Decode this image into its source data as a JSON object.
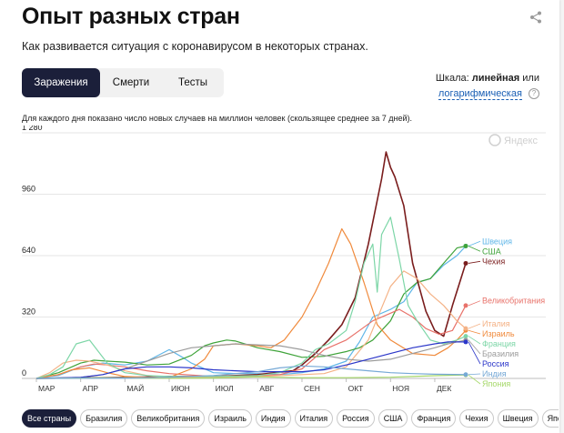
{
  "title": "Опыт разных стран",
  "subtitle": "Как развивается ситуация с коронавирусом в некоторых странах.",
  "icons": {
    "share": "share-icon",
    "help": "help-icon",
    "watermark": "yandex-logo-icon"
  },
  "tabs": [
    {
      "label": "Заражения",
      "active": true
    },
    {
      "label": "Смерти",
      "active": false
    },
    {
      "label": "Тесты",
      "active": false
    }
  ],
  "scale": {
    "prefix": "Шкала:",
    "current": "линейная",
    "or": "или",
    "alternative": "логарифмическая"
  },
  "note": "Для каждого дня показано число новых случаев на миллион человек (скользящее среднее за 7 дней).",
  "watermark": "Яндекс",
  "filters": [
    {
      "label": "Все страны",
      "active": true
    },
    {
      "label": "Бразилия",
      "active": false
    },
    {
      "label": "Великобритания",
      "active": false
    },
    {
      "label": "Израиль",
      "active": false
    },
    {
      "label": "Индия",
      "active": false
    },
    {
      "label": "Италия",
      "active": false
    },
    {
      "label": "Россия",
      "active": false
    },
    {
      "label": "США",
      "active": false
    },
    {
      "label": "Франция",
      "active": false
    },
    {
      "label": "Чехия",
      "active": false
    },
    {
      "label": "Швеция",
      "active": false
    },
    {
      "label": "Япония",
      "active": false
    }
  ],
  "chart_data": {
    "type": "line",
    "title": "",
    "xlabel": "",
    "ylabel": "",
    "ylim": [
      0,
      1280
    ],
    "yticks": [
      0,
      320,
      640,
      960,
      1280
    ],
    "ytick_labels": [
      "0",
      "320",
      "640",
      "960",
      "1 280"
    ],
    "xlim": [
      0,
      9.7
    ],
    "xticks": [
      0,
      1,
      2,
      3,
      4,
      5,
      6,
      7,
      8,
      9
    ],
    "xtick_labels": [
      "МАР",
      "АПР",
      "МАЙ",
      "ИЮН",
      "ИЮЛ",
      "АВГ",
      "СЕН",
      "ОКТ",
      "НОЯ",
      "ДЕК"
    ],
    "x_unit": "month (0 = start of March)",
    "grid": "horizontal",
    "legend": "right end labels",
    "series": [
      {
        "name": "Швеция",
        "color": "#5fb6e8",
        "x": [
          0,
          0.5,
          1,
          1.5,
          2,
          2.5,
          3,
          3.3,
          3.5,
          4,
          4.5,
          5,
          5.5,
          6,
          6.5,
          7,
          7.3,
          7.6,
          8,
          8.3,
          8.6,
          8.9,
          9.2,
          9.5,
          9.7
        ],
        "y": [
          0,
          15,
          60,
          80,
          70,
          90,
          150,
          110,
          80,
          30,
          25,
          25,
          20,
          30,
          50,
          90,
          190,
          320,
          360,
          400,
          500,
          520,
          590,
          640,
          690
        ]
      },
      {
        "name": "США",
        "color": "#3fa33a",
        "x": [
          0,
          0.5,
          1,
          1.3,
          1.6,
          2,
          2.5,
          3,
          3.5,
          3.8,
          4,
          4.3,
          4.5,
          5,
          5.5,
          6,
          6.5,
          7,
          7.3,
          7.6,
          8,
          8.3,
          8.6,
          8.9,
          9.2,
          9.5,
          9.7
        ],
        "y": [
          0,
          30,
          80,
          95,
          90,
          85,
          70,
          75,
          120,
          170,
          185,
          200,
          195,
          160,
          140,
          110,
          115,
          140,
          160,
          200,
          300,
          440,
          500,
          520,
          600,
          680,
          690
        ]
      },
      {
        "name": "Чехия",
        "color": "#7a1d1d",
        "x": [
          0,
          2,
          3,
          4,
          5,
          5.8,
          6,
          6.3,
          6.6,
          6.9,
          7.2,
          7.5,
          7.8,
          7.9,
          8,
          8.1,
          8.3,
          8.5,
          8.8,
          9,
          9.2,
          9.4,
          9.7
        ],
        "y": [
          0,
          5,
          10,
          10,
          20,
          40,
          70,
          130,
          200,
          280,
          420,
          700,
          1040,
          1180,
          1100,
          1050,
          900,
          600,
          350,
          250,
          220,
          380,
          600
        ]
      },
      {
        "name": "Великобритания",
        "color": "#e8726a",
        "x": [
          0,
          0.5,
          1,
          1.3,
          1.6,
          2,
          2.5,
          3,
          4,
          5,
          5.5,
          6,
          6.5,
          7,
          7.3,
          7.6,
          7.9,
          8.2,
          8.5,
          8.8,
          9.1,
          9.4,
          9.7
        ],
        "y": [
          0,
          20,
          60,
          75,
          70,
          60,
          40,
          25,
          10,
          15,
          20,
          50,
          150,
          200,
          250,
          300,
          330,
          360,
          320,
          260,
          230,
          250,
          380
        ]
      },
      {
        "name": "Израиль",
        "color": "#f08a3c",
        "x": [
          0,
          0.5,
          0.8,
          1.2,
          1.6,
          2,
          2.5,
          3,
          3.5,
          3.8,
          4,
          4.5,
          5,
          5.3,
          5.6,
          6,
          6.3,
          6.6,
          6.8,
          6.9,
          7.1,
          7.4,
          7.7,
          8,
          8.5,
          9,
          9.3,
          9.5,
          9.7
        ],
        "y": [
          0,
          20,
          45,
          55,
          30,
          10,
          5,
          5,
          50,
          100,
          170,
          180,
          170,
          160,
          200,
          320,
          450,
          600,
          720,
          780,
          700,
          500,
          280,
          200,
          130,
          120,
          160,
          200,
          250
        ]
      },
      {
        "name": "Италия",
        "color": "#f4b286",
        "x": [
          0,
          0.3,
          0.6,
          0.9,
          1.2,
          1.6,
          2,
          2.5,
          3,
          4,
          5,
          6,
          6.5,
          7,
          7.5,
          8,
          8.3,
          8.6,
          8.9,
          9.2,
          9.5,
          9.7
        ],
        "y": [
          0,
          30,
          80,
          95,
          90,
          70,
          40,
          15,
          5,
          5,
          10,
          20,
          25,
          60,
          200,
          480,
          560,
          520,
          440,
          380,
          300,
          260
        ]
      },
      {
        "name": "Франция",
        "color": "#7dd6a7",
        "x": [
          0,
          0.3,
          0.6,
          0.9,
          1.2,
          1.6,
          2,
          2.5,
          3,
          4,
          5,
          5.5,
          6,
          6.3,
          6.6,
          7,
          7.2,
          7.4,
          7.6,
          7.7,
          7.8,
          8,
          8.2,
          8.4,
          8.6,
          8.9,
          9.2,
          9.5,
          9.7
        ],
        "y": [
          0,
          20,
          60,
          180,
          200,
          80,
          30,
          15,
          10,
          10,
          15,
          30,
          80,
          150,
          180,
          250,
          400,
          600,
          700,
          450,
          750,
          840,
          620,
          380,
          300,
          200,
          180,
          200,
          220
        ]
      },
      {
        "name": "Бразилия",
        "color": "#9b9b9b",
        "x": [
          0,
          1,
          1.5,
          2,
          2.5,
          3,
          3.5,
          4,
          4.5,
          5,
          5.5,
          6,
          6.5,
          7,
          7.5,
          8,
          8.5,
          9,
          9.3,
          9.7
        ],
        "y": [
          0,
          5,
          20,
          50,
          90,
          130,
          160,
          170,
          180,
          175,
          170,
          150,
          120,
          100,
          90,
          100,
          130,
          160,
          180,
          200
        ]
      },
      {
        "name": "Россия",
        "color": "#2b36c9",
        "x": [
          0,
          1,
          1.5,
          2,
          2.5,
          3,
          3.5,
          4,
          4.5,
          5,
          5.5,
          6,
          6.5,
          7,
          7.5,
          8,
          8.5,
          9,
          9.3,
          9.7
        ],
        "y": [
          0,
          5,
          20,
          50,
          60,
          60,
          55,
          45,
          40,
          35,
          35,
          35,
          45,
          70,
          100,
          130,
          160,
          180,
          190,
          190
        ]
      },
      {
        "name": "Япония",
        "color": "#a6d86a",
        "x": [
          0,
          1,
          1.5,
          2,
          3,
          4,
          4.5,
          5,
          5.5,
          6,
          7,
          8,
          8.5,
          9,
          9.7
        ],
        "y": [
          0,
          2,
          4,
          3,
          1,
          2,
          5,
          8,
          6,
          4,
          4,
          6,
          10,
          14,
          18
        ]
      },
      {
        "name": "Индия",
        "color": "#76a9d6",
        "x": [
          0,
          1,
          2,
          3,
          4,
          4.5,
          5,
          5.5,
          6,
          6.5,
          7,
          7.5,
          8,
          8.5,
          9,
          9.7
        ],
        "y": [
          0,
          1,
          2,
          6,
          15,
          25,
          35,
          55,
          65,
          60,
          50,
          40,
          30,
          25,
          22,
          20
        ]
      }
    ]
  }
}
